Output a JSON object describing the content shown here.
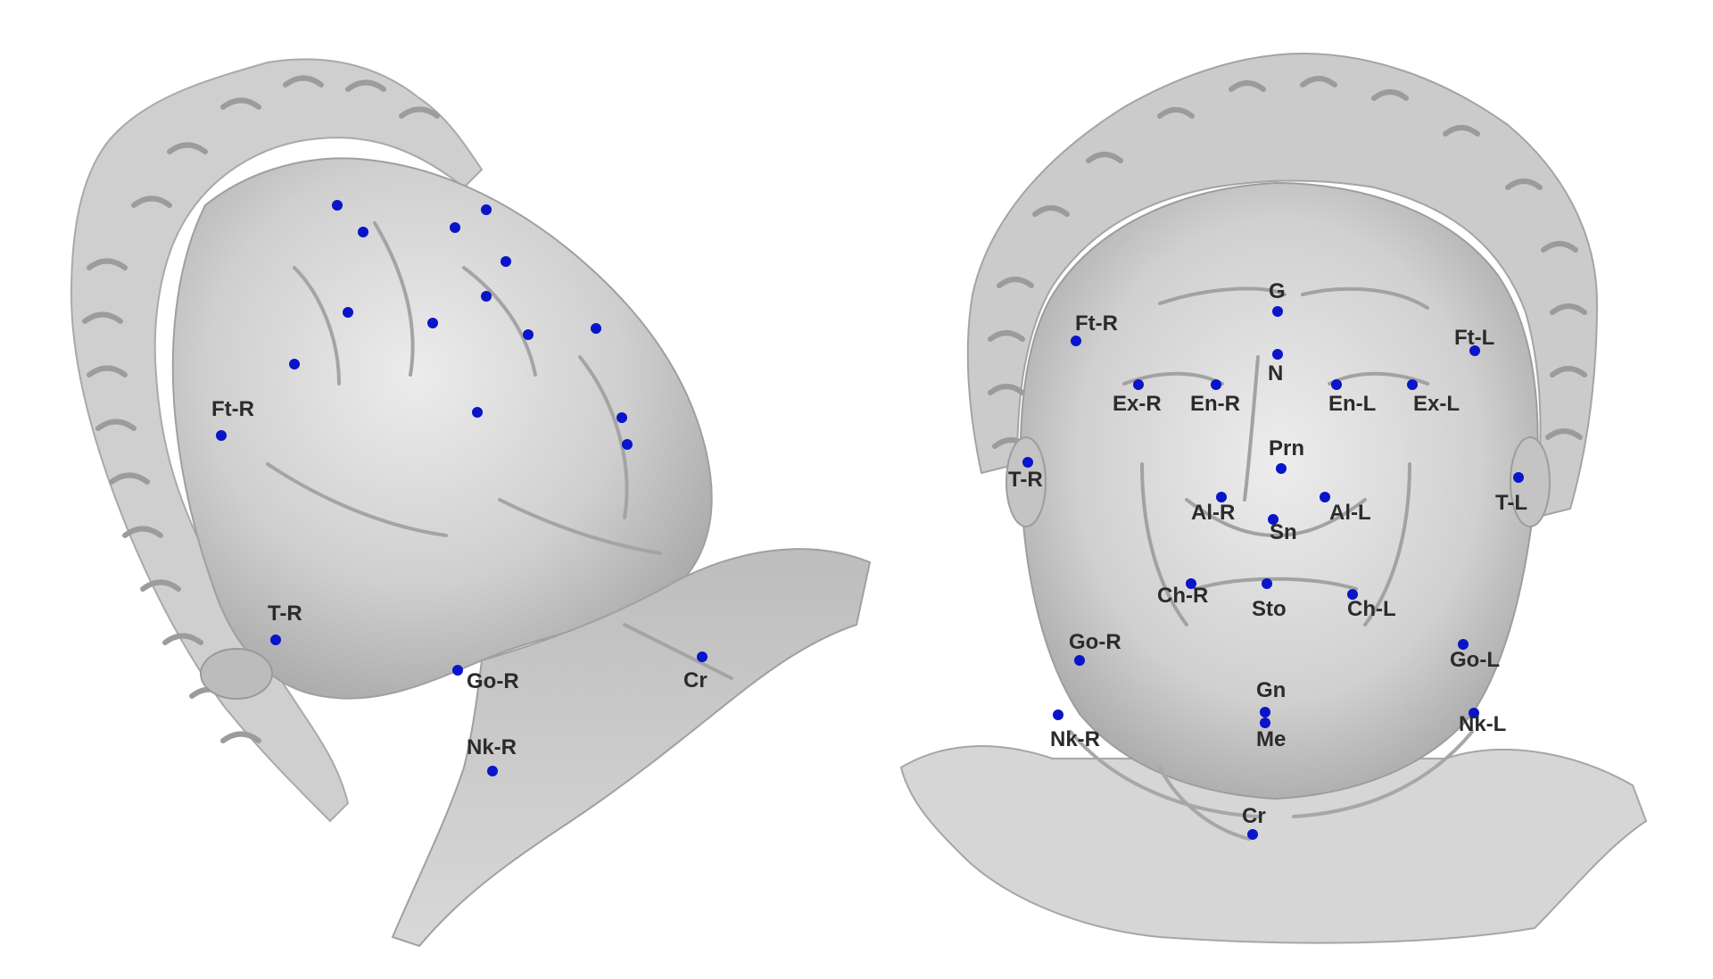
{
  "colors": {
    "background": "#ffffff",
    "mesh_light": "#e6e6e6",
    "mesh_mid": "#c8c8c8",
    "mesh_dark": "#9a9a9a",
    "landmark": "#0a14c8",
    "label": "#2b2b2b"
  },
  "left_view": {
    "labels": [
      {
        "id": "ft-r",
        "text": "Ft-R"
      },
      {
        "id": "t-r",
        "text": "T-R"
      },
      {
        "id": "go-r",
        "text": "Go-R"
      },
      {
        "id": "cr",
        "text": "Cr"
      },
      {
        "id": "nk-r",
        "text": "Nk-R"
      }
    ]
  },
  "right_view": {
    "labels": [
      {
        "id": "g",
        "text": "G"
      },
      {
        "id": "ft-r",
        "text": "Ft-R"
      },
      {
        "id": "ft-l",
        "text": "Ft-L"
      },
      {
        "id": "n",
        "text": "N"
      },
      {
        "id": "ex-r",
        "text": "Ex-R"
      },
      {
        "id": "en-r",
        "text": "En-R"
      },
      {
        "id": "en-l",
        "text": "En-L"
      },
      {
        "id": "ex-l",
        "text": "Ex-L"
      },
      {
        "id": "prn",
        "text": "Prn"
      },
      {
        "id": "t-r",
        "text": "T-R"
      },
      {
        "id": "t-l",
        "text": "T-L"
      },
      {
        "id": "al-r",
        "text": "Al-R"
      },
      {
        "id": "al-l",
        "text": "Al-L"
      },
      {
        "id": "sn",
        "text": "Sn"
      },
      {
        "id": "ch-r",
        "text": "Ch-R"
      },
      {
        "id": "sto",
        "text": "Sto"
      },
      {
        "id": "ch-l",
        "text": "Ch-L"
      },
      {
        "id": "go-r",
        "text": "Go-R"
      },
      {
        "id": "go-l",
        "text": "Go-L"
      },
      {
        "id": "gn",
        "text": "Gn"
      },
      {
        "id": "nk-r",
        "text": "Nk-R"
      },
      {
        "id": "me",
        "text": "Me"
      },
      {
        "id": "nk-l",
        "text": "Nk-L"
      },
      {
        "id": "cr",
        "text": "Cr"
      }
    ]
  }
}
